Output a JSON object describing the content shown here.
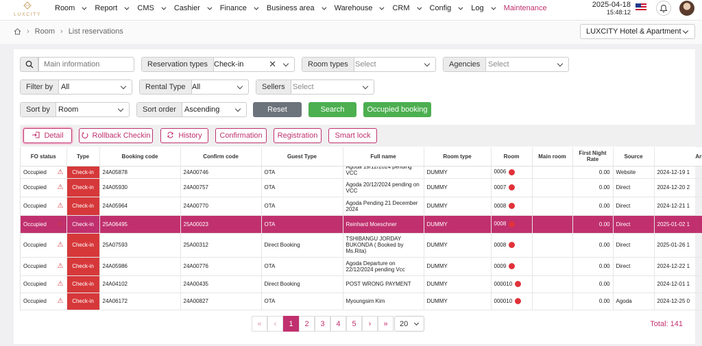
{
  "app": {
    "logo_text": "LUXCITY"
  },
  "nav": {
    "items": [
      "Room",
      "Report",
      "CMS",
      "Cashier",
      "Finance",
      "Business area",
      "Warehouse",
      "CRM",
      "Config",
      "Log",
      "Maintenance"
    ],
    "active": "Maintenance",
    "date": "2025-04-18",
    "time": "15:48:12"
  },
  "breadcrumb": [
    "Room",
    "List reservations"
  ],
  "hotel": "LUXCITY Hotel & Apartment",
  "filters": {
    "main_info_placeholder": "Main information",
    "reservation_types_label": "Reservation types",
    "reservation_types_value": "Check-in",
    "room_types_label": "Room types",
    "room_types_placeholder": "Select",
    "agencies_label": "Agencies",
    "agencies_placeholder": "Select",
    "filter_by_label": "Filter by",
    "filter_by_value": "All",
    "rental_type_label": "Rental Type",
    "rental_type_value": "All",
    "sellers_label": "Sellers",
    "sellers_placeholder": "Select",
    "sort_by_label": "Sort by",
    "sort_by_value": "Room",
    "sort_order_label": "Sort order",
    "sort_order_value": "Ascending"
  },
  "buttons": {
    "reset": "Reset",
    "search": "Search",
    "occupied_booking": "Occupied booking"
  },
  "toolbar": {
    "detail": "Detail",
    "rollback": "Rollback Checkin",
    "history": "History",
    "confirmation": "Confirmation",
    "registration": "Registration",
    "smart_lock": "Smart lock"
  },
  "table": {
    "headers": [
      "FO status",
      "Type",
      "Booking code",
      "Confirm code",
      "Guest Type",
      "Full name",
      "Room type",
      "Room",
      "Main room",
      "First Night Rate",
      "Source",
      "Arrival"
    ],
    "rows": [
      {
        "fo_status": "Occupied",
        "type": "Check-in",
        "booking": "24A05878",
        "confirm": "24A00746",
        "guest_type": "OTA",
        "full_name": "Agoda 19/12/2024 pending VCC",
        "room_type": "DUMMY",
        "room": "0006",
        "main_room": "",
        "rate": "0.00",
        "source": "Website",
        "arrival": "2024-12-19 1"
      },
      {
        "fo_status": "Occupied",
        "type": "Check-in",
        "booking": "24A05930",
        "confirm": "24A00757",
        "guest_type": "OTA",
        "full_name": "Agoda 20/12/2024 pending on VCC",
        "room_type": "DUMMY",
        "room": "0007",
        "main_room": "",
        "rate": "0.00",
        "source": "Direct",
        "arrival": "2024-12-20 2"
      },
      {
        "fo_status": "Occupied",
        "type": "Check-in",
        "booking": "24A05964",
        "confirm": "24A00770",
        "guest_type": "OTA",
        "full_name": "Agoda Pending 21 December 2024",
        "room_type": "DUMMY",
        "room": "0008",
        "main_room": "",
        "rate": "0.00",
        "source": "Direct",
        "arrival": "2024-12-21 1"
      },
      {
        "fo_status": "Occupied",
        "type": "Check-in",
        "booking": "25A06495",
        "confirm": "25A00023",
        "guest_type": "OTA",
        "full_name": "Reinhard Moeschner",
        "room_type": "DUMMY",
        "room": "0008",
        "main_room": "",
        "rate": "0.00",
        "source": "Direct",
        "arrival": "2025-01-02 1"
      },
      {
        "fo_status": "Occupied",
        "type": "Check-in",
        "booking": "25A07593",
        "confirm": "25A00312",
        "guest_type": "Direct Booking",
        "full_name": "TSHIBANGU JORDAY BUKONDA ( Booked by Ms.Rita)",
        "room_type": "DUMMY",
        "room": "0008",
        "main_room": "",
        "rate": "0.00",
        "source": "Direct",
        "arrival": "2025-01-26 1"
      },
      {
        "fo_status": "Occupied",
        "type": "Check-in",
        "booking": "24A05986",
        "confirm": "24A00776",
        "guest_type": "OTA",
        "full_name": "Agoda Departure on 22/12/2024 pending Vcc",
        "room_type": "DUMMY",
        "room": "0009",
        "main_room": "",
        "rate": "0.00",
        "source": "Direct",
        "arrival": "2024-12-22 1"
      },
      {
        "fo_status": "Occupied",
        "type": "Check-in",
        "booking": "24A04102",
        "confirm": "24A00435",
        "guest_type": "Direct Booking",
        "full_name": "POST WRONG PAYMENT",
        "room_type": "DUMMY",
        "room": "000010",
        "main_room": "",
        "rate": "0.00",
        "source": "",
        "arrival": "2024-12-01 1"
      },
      {
        "fo_status": "Occupied",
        "type": "Check-in",
        "booking": "24A06172",
        "confirm": "24A00827",
        "guest_type": "OTA",
        "full_name": "Myoungsim Kim",
        "room_type": "DUMMY",
        "room": "000010",
        "main_room": "",
        "rate": "0.00",
        "source": "Agoda",
        "arrival": "2024-12-25 0"
      }
    ]
  },
  "pagination": {
    "first": "«",
    "prev": "‹",
    "next": "›",
    "last": "»",
    "pages": [
      "1",
      "2",
      "3",
      "4",
      "5"
    ],
    "current": "1",
    "per_page": "20",
    "total": "Total: 141"
  },
  "colors": {
    "brand": "#c0306e",
    "check_in": "#d6383a",
    "green": "#4caf50",
    "reset": "#6c737b",
    "gold": "#c9a36a"
  }
}
